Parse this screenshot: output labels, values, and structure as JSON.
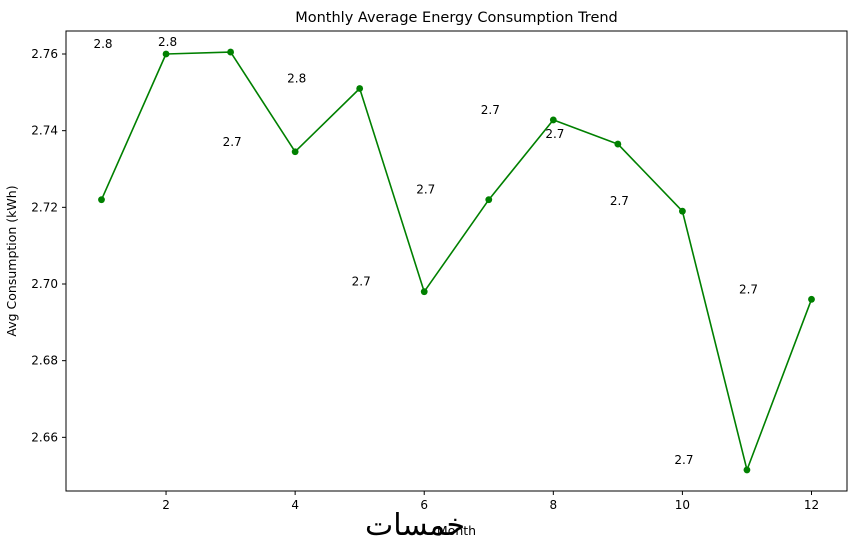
{
  "chart_data": {
    "type": "line",
    "title": "Monthly Average Energy Consumption Trend",
    "xlabel": "Month",
    "ylabel": "Avg Consumption (kWh)",
    "x": [
      1,
      2,
      3,
      4,
      5,
      6,
      7,
      8,
      9,
      10,
      11,
      12
    ],
    "values": [
      2.722,
      2.76,
      2.7605,
      2.7345,
      2.751,
      2.698,
      2.722,
      2.7428,
      2.7365,
      2.719,
      2.6515,
      2.696
    ],
    "point_labels": [
      {
        "month": 2,
        "text": "2.8"
      },
      {
        "month": 3,
        "text": "2.8"
      },
      {
        "month": 4,
        "text": "2.7"
      },
      {
        "month": 5,
        "text": "2.8"
      },
      {
        "month": 6,
        "text": "2.7"
      },
      {
        "month": 7,
        "text": "2.7"
      },
      {
        "month": 8,
        "text": "2.7"
      },
      {
        "month": 9,
        "text": "2.7"
      },
      {
        "month": 10,
        "text": "2.7"
      },
      {
        "month": 11,
        "text": "2.7"
      },
      {
        "month": 12,
        "text": "2.7"
      }
    ],
    "xticks": [
      2,
      4,
      6,
      8,
      10,
      12
    ],
    "xtick_labels": [
      "2",
      "4",
      "6",
      "8",
      "10",
      "12"
    ],
    "yticks": [
      2.66,
      2.68,
      2.7,
      2.72,
      2.74,
      2.76
    ],
    "ytick_labels": [
      "2.66",
      "2.68",
      "2.70",
      "2.72",
      "2.74",
      "2.76"
    ],
    "xlim": [
      0.45,
      12.55
    ],
    "ylim": [
      2.646,
      2.766
    ],
    "grid": false,
    "legend_position": "none",
    "line_color": "#008000",
    "marker_color": "#008000",
    "axis_color": "#000000"
  },
  "watermark": {
    "text": "خمسات",
    "color": "#b3b3b3"
  }
}
